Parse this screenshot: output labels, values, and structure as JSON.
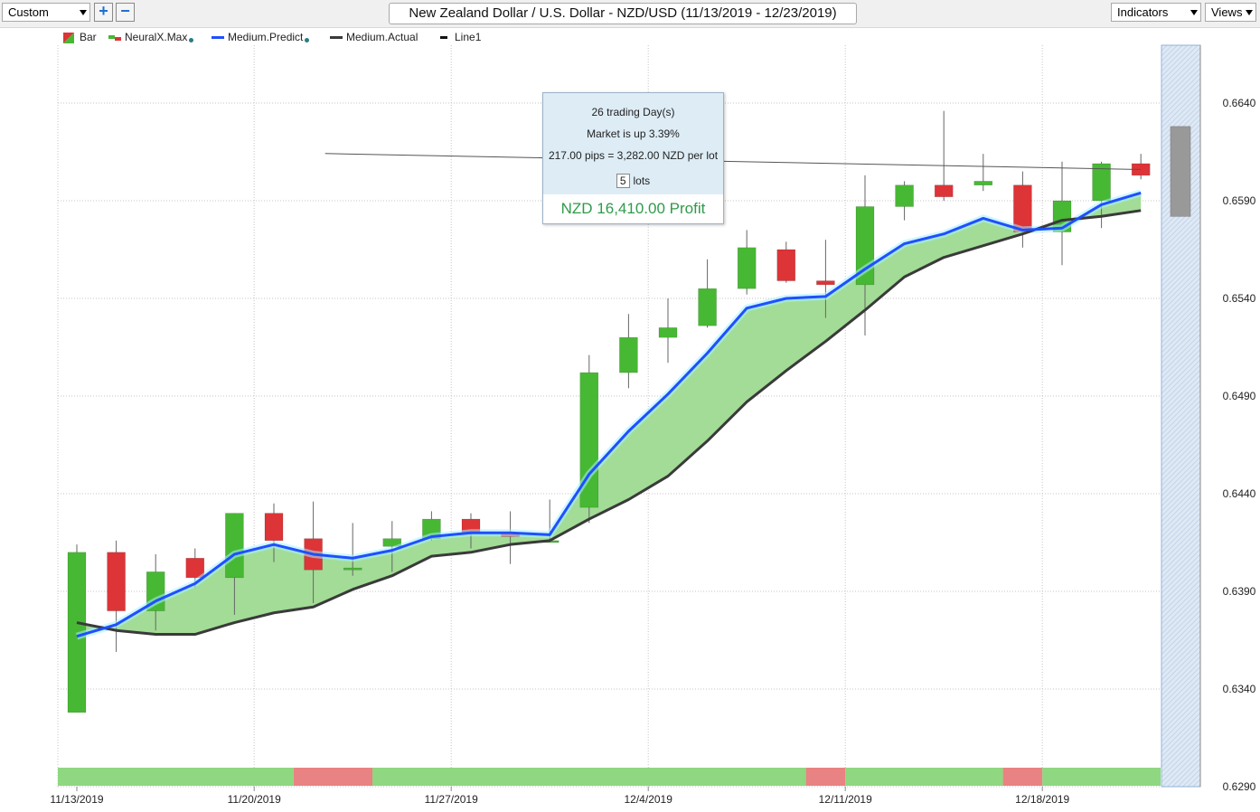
{
  "toolbar": {
    "preset_select": "Custom",
    "add_button": "+",
    "remove_button": "−",
    "title": "New Zealand Dollar / U.S. Dollar - NZD/USD (11/13/2019 - 12/23/2019)",
    "indicators_select": "Indicators",
    "views_select": "Views"
  },
  "legend": {
    "items": [
      {
        "label": "Bar",
        "icon": "candle-bar-icon",
        "indicator_dot": false
      },
      {
        "label": "NeuralX.Max",
        "icon": "neural-bar-icon",
        "indicator_dot": true
      },
      {
        "label": "Medium.Predict",
        "icon": "blue-line-icon",
        "indicator_dot": true
      },
      {
        "label": "Medium.Actual",
        "icon": "dark-line-icon",
        "indicator_dot": false
      },
      {
        "label": "Line1",
        "icon": "black-line-icon",
        "indicator_dot": false
      }
    ]
  },
  "tooltip": {
    "days": "26 trading Day(s)",
    "change": "Market is up 3.39%",
    "pips": "217.00 pips = 3,282.00 NZD per lot",
    "lots_value": "5",
    "lots_label": "lots",
    "profit": "NZD 16,410.00 Profit"
  },
  "colors": {
    "up_candle": "#47b833",
    "down_candle": "#dd3438",
    "predict_line": "#1f4fff",
    "actual_line": "#3a3a3a",
    "fill_band": "#a2dc96",
    "signal_up": "#8fd780",
    "signal_down": "#e98282"
  },
  "chart_data": {
    "type": "candlestick",
    "y_axis": {
      "ticks": [
        0.664,
        0.659,
        0.654,
        0.649,
        0.644,
        0.639,
        0.634,
        0.629
      ],
      "range": [
        0.629,
        0.6675
      ],
      "position": "right"
    },
    "x_axis": {
      "ticks": [
        "11/13/2019",
        "11/20/2019",
        "11/27/2019",
        "12/4/2019",
        "12/11/2019",
        "12/18/2019"
      ]
    },
    "grid": true,
    "candles": [
      {
        "o": 0.6328,
        "h": 0.6414,
        "l": 0.6328,
        "c": 0.641
      },
      {
        "o": 0.641,
        "h": 0.6416,
        "l": 0.6359,
        "c": 0.638
      },
      {
        "o": 0.638,
        "h": 0.6409,
        "l": 0.637,
        "c": 0.64
      },
      {
        "o": 0.6407,
        "h": 0.6412,
        "l": 0.6392,
        "c": 0.6397
      },
      {
        "o": 0.6397,
        "h": 0.643,
        "l": 0.6378,
        "c": 0.643
      },
      {
        "o": 0.643,
        "h": 0.6435,
        "l": 0.6405,
        "c": 0.6416
      },
      {
        "o": 0.6417,
        "h": 0.6436,
        "l": 0.6384,
        "c": 0.6401
      },
      {
        "o": 0.6401,
        "h": 0.6425,
        "l": 0.6398,
        "c": 0.6402
      },
      {
        "o": 0.6413,
        "h": 0.6426,
        "l": 0.64,
        "c": 0.6417
      },
      {
        "o": 0.6417,
        "h": 0.6431,
        "l": 0.6416,
        "c": 0.6427
      },
      {
        "o": 0.6427,
        "h": 0.643,
        "l": 0.6412,
        "c": 0.642
      },
      {
        "o": 0.642,
        "h": 0.6431,
        "l": 0.6404,
        "c": 0.6418
      },
      {
        "o": 0.6415,
        "h": 0.6437,
        "l": 0.6415,
        "c": 0.6416
      },
      {
        "o": 0.6433,
        "h": 0.6511,
        "l": 0.6425,
        "c": 0.6502
      },
      {
        "o": 0.6502,
        "h": 0.6532,
        "l": 0.6494,
        "c": 0.652
      },
      {
        "o": 0.652,
        "h": 0.654,
        "l": 0.6507,
        "c": 0.6525
      },
      {
        "o": 0.6526,
        "h": 0.656,
        "l": 0.6525,
        "c": 0.6545
      },
      {
        "o": 0.6545,
        "h": 0.6575,
        "l": 0.6542,
        "c": 0.6566
      },
      {
        "o": 0.6565,
        "h": 0.6569,
        "l": 0.6548,
        "c": 0.6549
      },
      {
        "o": 0.6549,
        "h": 0.657,
        "l": 0.653,
        "c": 0.6547
      },
      {
        "o": 0.6547,
        "h": 0.6603,
        "l": 0.6521,
        "c": 0.6587
      },
      {
        "o": 0.6587,
        "h": 0.66,
        "l": 0.658,
        "c": 0.6598
      },
      {
        "o": 0.6598,
        "h": 0.6636,
        "l": 0.659,
        "c": 0.6592
      },
      {
        "o": 0.6598,
        "h": 0.6614,
        "l": 0.6595,
        "c": 0.66
      },
      {
        "o": 0.6598,
        "h": 0.6605,
        "l": 0.6566,
        "c": 0.6574
      },
      {
        "o": 0.6574,
        "h": 0.661,
        "l": 0.6557,
        "c": 0.659
      },
      {
        "o": 0.659,
        "h": 0.661,
        "l": 0.6576,
        "c": 0.6609
      },
      {
        "o": 0.6609,
        "h": 0.6614,
        "l": 0.6601,
        "c": 0.6603
      }
    ],
    "series": [
      {
        "name": "Medium.Predict",
        "values": [
          0.6367,
          0.6373,
          0.6385,
          0.6394,
          0.6409,
          0.6414,
          0.6409,
          0.6407,
          0.6411,
          0.6418,
          0.642,
          0.642,
          0.6419,
          0.645,
          0.6472,
          0.6491,
          0.6512,
          0.6535,
          0.654,
          0.6541,
          0.6555,
          0.6568,
          0.6573,
          0.6581,
          0.6575,
          0.6576,
          0.6588,
          0.6594
        ]
      },
      {
        "name": "Medium.Actual",
        "values": [
          0.6374,
          0.637,
          0.6368,
          0.6368,
          0.6374,
          0.6379,
          0.6382,
          0.6391,
          0.6398,
          0.6408,
          0.641,
          0.6414,
          0.6416,
          0.6427,
          0.6437,
          0.6449,
          0.6467,
          0.6487,
          0.6503,
          0.6518,
          0.6534,
          0.6551,
          0.6561,
          0.6567,
          0.6573,
          0.658,
          0.6582,
          0.6585
        ]
      }
    ],
    "line1": {
      "from_index": 6.3,
      "from_value": 0.661,
      "to_index": 27,
      "to_value": 0.6606
    },
    "signal_strip": [
      {
        "state": "up",
        "from": 0,
        "to": 6
      },
      {
        "state": "down",
        "from": 6,
        "to": 8
      },
      {
        "state": "up",
        "from": 8,
        "to": 19
      },
      {
        "state": "down",
        "from": 19,
        "to": 20
      },
      {
        "state": "up",
        "from": 20,
        "to": 24
      },
      {
        "state": "down",
        "from": 24,
        "to": 25
      },
      {
        "state": "up",
        "from": 25,
        "to": 28
      }
    ],
    "forecast_bar": {
      "high": 0.6628,
      "low": 0.6582
    }
  }
}
